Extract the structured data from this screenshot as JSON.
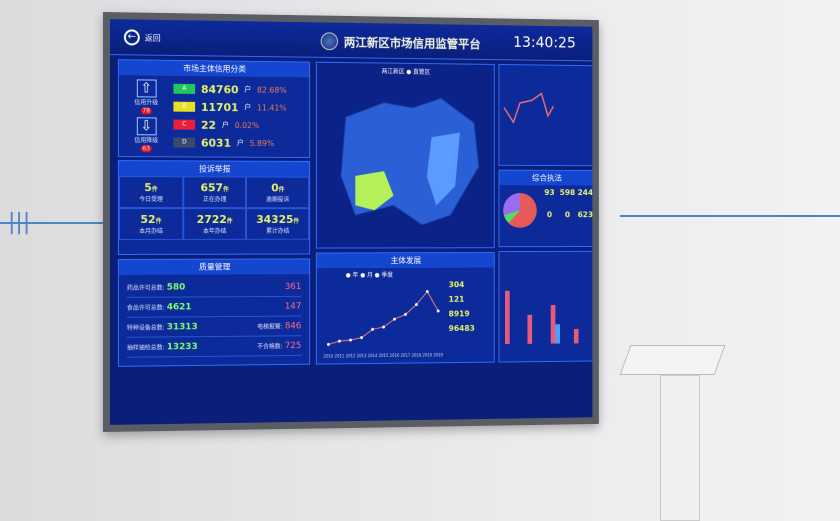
{
  "header": {
    "back": "返回",
    "title": "两江新区市场信用监管平台",
    "time": "13:40:25"
  },
  "credit": {
    "title": "市场主体信用分类",
    "up_label": "信用升级",
    "up_count": "78",
    "down_label": "信用降级",
    "down_count": "63",
    "rows": [
      {
        "grade": "A",
        "color": "#22c55e",
        "count": "84760",
        "unit": "户",
        "pct": "82.68%"
      },
      {
        "grade": "B",
        "color": "#e8e020",
        "count": "11701",
        "unit": "户",
        "pct": "11.41%"
      },
      {
        "grade": "C",
        "color": "#e8203a",
        "count": "22",
        "unit": "户",
        "pct": "0.02%"
      },
      {
        "grade": "D",
        "color": "#3a4a6a",
        "count": "6031",
        "unit": "户",
        "pct": "5.89%"
      }
    ]
  },
  "complaints": {
    "title": "投诉举报",
    "unit": "件",
    "cells": [
      {
        "v": "5",
        "l": "今日受理"
      },
      {
        "v": "657",
        "l": "正在办理"
      },
      {
        "v": "0",
        "l": "逾期投诉"
      },
      {
        "v": "52",
        "l": "本月办结"
      },
      {
        "v": "2722",
        "l": "本年办结"
      },
      {
        "v": "34325",
        "l": "累计办结"
      }
    ]
  },
  "quality": {
    "title": "质量管理",
    "rows": [
      {
        "l": "药品许可总数:",
        "v": "580",
        "v2": "361"
      },
      {
        "l": "食品许可总数:",
        "v": "4621",
        "v2": "147"
      },
      {
        "l": "特种设备总数:",
        "v": "31313",
        "l2": "电梯报警:",
        "v2": "846"
      },
      {
        "l": "抽样抽检总数:",
        "v": "13233",
        "l2": "不合格数:",
        "v2": "725"
      }
    ]
  },
  "map": {
    "legend": [
      "两江新区",
      "直管区"
    ]
  },
  "development": {
    "title": "主体发展",
    "legend": [
      "年",
      "月",
      "季度"
    ],
    "stats": [
      "304",
      "121",
      "8919",
      "96483"
    ],
    "chart_data": {
      "type": "line",
      "x": [
        "2010",
        "2011",
        "2012",
        "2013",
        "2014",
        "2015",
        "2016",
        "2017",
        "2018",
        "2019",
        "2020"
      ],
      "values": [
        1000,
        2000,
        2300,
        3000,
        5500,
        6200,
        8600,
        10000,
        13000,
        17000,
        11000
      ],
      "ylim": [
        0,
        18000
      ]
    }
  },
  "enforcement": {
    "title": "综合执法",
    "cells": [
      "93",
      "598",
      "244",
      "0",
      "0",
      "623"
    ]
  },
  "colors": {
    "screen_bg": "#0a1f7a",
    "panel_header": "#1546d0",
    "accent": "#e6f36a"
  }
}
